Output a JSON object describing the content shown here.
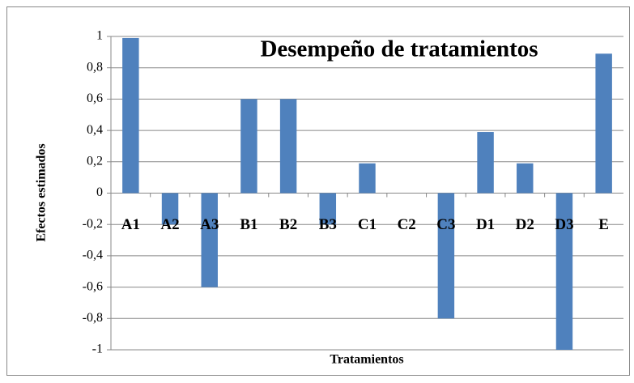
{
  "chart_data": {
    "type": "bar",
    "title": "Desempeño de tratamientos",
    "x_label": "Tratamientos",
    "y_label": "Efectos estimados",
    "categories": [
      "A1",
      "A2",
      "A3",
      "B1",
      "B2",
      "B3",
      "C1",
      "C2",
      "C3",
      "D1",
      "D2",
      "D3",
      "E"
    ],
    "values": [
      0.99,
      -0.2,
      -0.6,
      0.6,
      0.6,
      -0.2,
      0.19,
      0,
      -0.8,
      0.39,
      0.19,
      -1,
      0.89
    ],
    "color": "#4f81bd",
    "ylim": [
      -1,
      1
    ],
    "yticks": [
      -1,
      {
        "value": -0.8,
        "label": "-0,8"
      },
      {
        "value": -0.6,
        "label": "-0,6"
      },
      {
        "value": -0.4,
        "label": "-0,4"
      },
      {
        "value": -0.2,
        "label": "-0,2"
      },
      0,
      {
        "value": 0.2,
        "label": "0,2"
      },
      {
        "value": 0.4,
        "label": "0,4"
      },
      {
        "value": 0.6,
        "label": "0,6"
      },
      {
        "value": 0.8,
        "label": "0,8"
      },
      1
    ],
    "grid": true
  }
}
